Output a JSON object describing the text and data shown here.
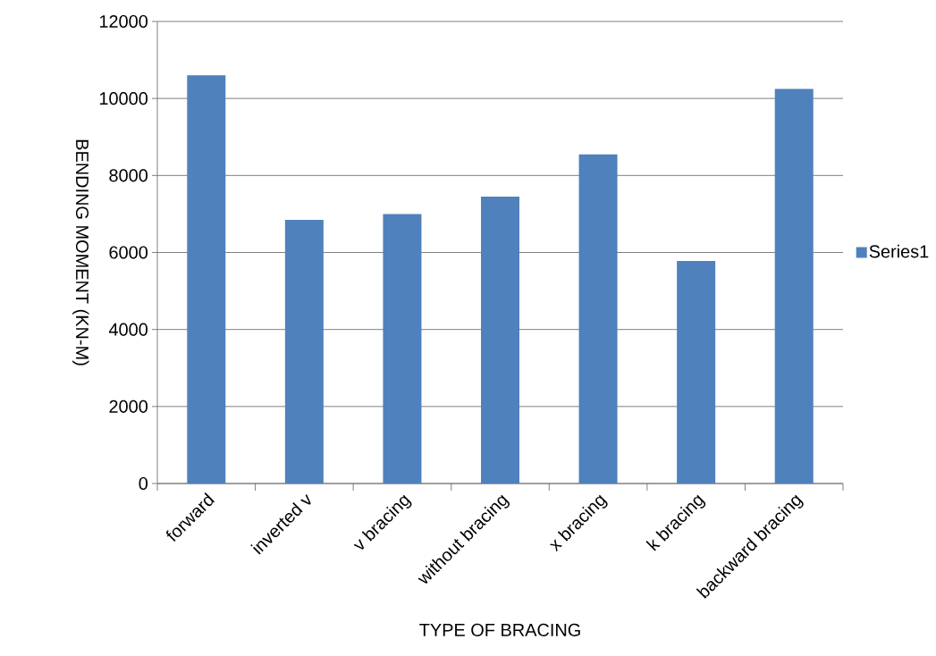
{
  "chart_data": {
    "type": "bar",
    "xlabel": "TYPE OF BRACING",
    "ylabel": "BENDING MOMENT (KN-M)",
    "categories": [
      "forward",
      "inverted v",
      "v bracing",
      "without bracing",
      "x bracing",
      "k bracing",
      "backward bracing"
    ],
    "series": [
      {
        "name": "Series1",
        "color": "#4f81bd",
        "values": [
          10600,
          6850,
          7000,
          7450,
          8550,
          5780,
          10250
        ]
      }
    ],
    "ylim": [
      0,
      12000
    ],
    "yticks": [
      0,
      2000,
      4000,
      6000,
      8000,
      10000,
      12000
    ],
    "grid": "y",
    "legend": "right"
  }
}
